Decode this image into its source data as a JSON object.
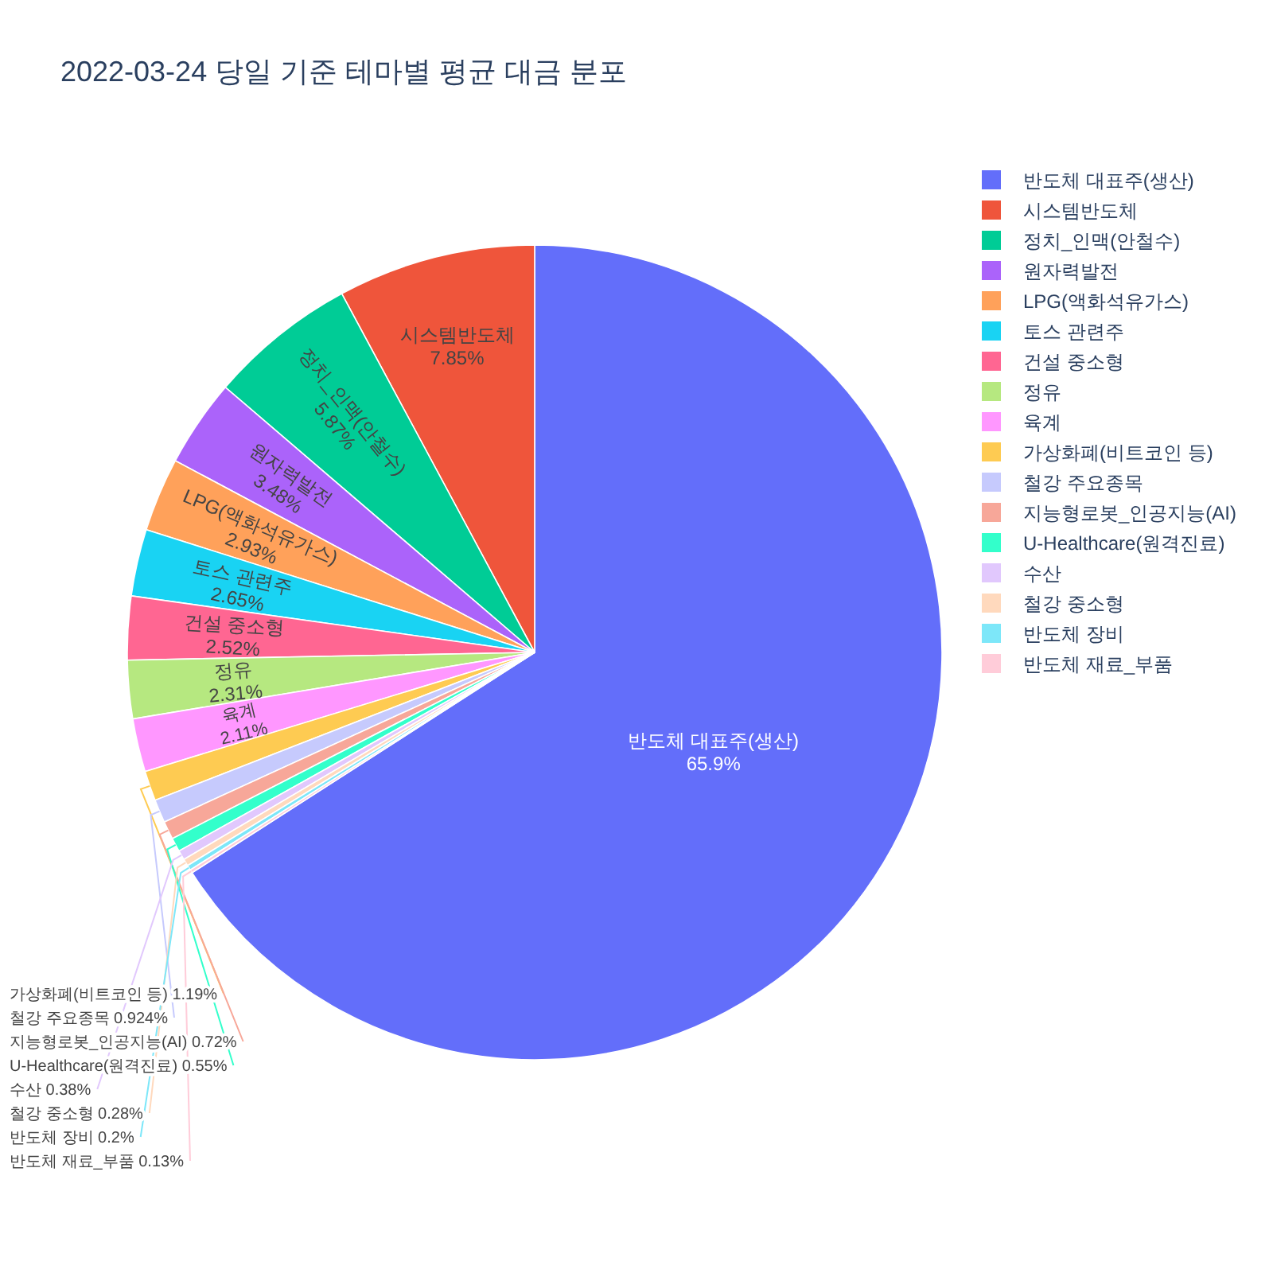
{
  "chart_data": {
    "type": "pie",
    "title": "2022-03-24 당일 기준 테마별 평균 대금 분포",
    "categories": [
      "반도체 대표주(생산)",
      "시스템반도체",
      "정치_인맥(안철수)",
      "원자력발전",
      "LPG(액화석유가스)",
      "토스 관련주",
      "건설 중소형",
      "정유",
      "육계",
      "가상화폐(비트코인 등)",
      "철강 주요종목",
      "지능형로봇_인공지능(AI)",
      "U-Healthcare(원격진료)",
      "수산",
      "철강 중소형",
      "반도체 장비",
      "반도체 재료_부품"
    ],
    "values": [
      65.9,
      7.85,
      5.87,
      3.48,
      2.93,
      2.65,
      2.52,
      2.31,
      2.11,
      1.19,
      0.924,
      0.72,
      0.55,
      0.38,
      0.28,
      0.2,
      0.13
    ],
    "value_labels": [
      "65.9%",
      "7.85%",
      "5.87%",
      "3.48%",
      "2.93%",
      "2.65%",
      "2.52%",
      "2.31%",
      "2.11%",
      "1.19%",
      "0.924%",
      "0.72%",
      "0.55%",
      "0.38%",
      "0.28%",
      "0.2%",
      "0.13%"
    ],
    "colors": [
      "#636efa",
      "#ef553b",
      "#00cc96",
      "#ab63fa",
      "#ffa15a",
      "#19d3f3",
      "#ff6692",
      "#b6e880",
      "#ff97ff",
      "#fecb52",
      "#c6cafd",
      "#f7a799",
      "#33ffcb",
      "#e1c8fd",
      "#ffd9bd",
      "#7de7f9",
      "#ffccd9"
    ],
    "legend": "top right"
  }
}
